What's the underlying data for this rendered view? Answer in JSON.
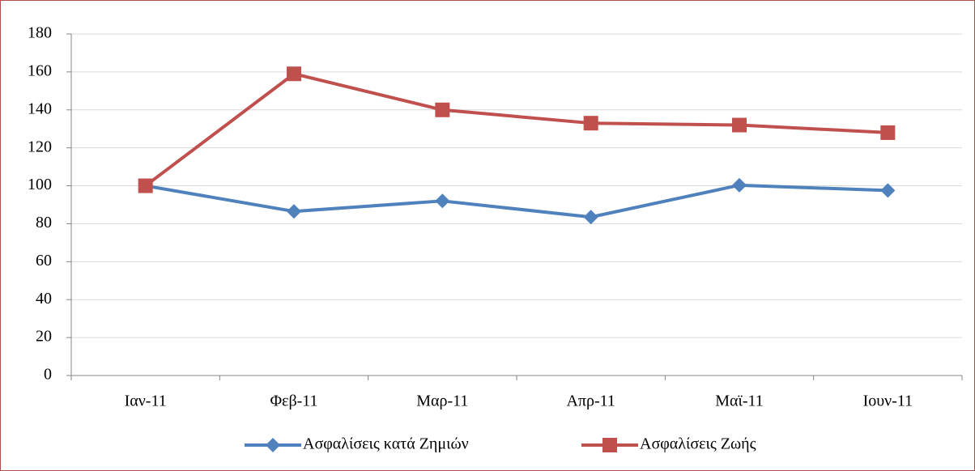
{
  "chart_data": {
    "type": "line",
    "categories": [
      "Ιαν-11",
      "Φεβ-11",
      "Μαρ-11",
      "Απρ-11",
      "Μαϊ-11",
      "Ιουν-11"
    ],
    "series": [
      {
        "name": "Ασφαλίσεις κατά Ζημιών",
        "color": "#4f81bd",
        "marker": "diamond",
        "values": [
          100,
          86.5,
          92,
          83.5,
          100.3,
          97.5
        ]
      },
      {
        "name": "Ασφαλίσεις Ζωής",
        "color": "#c0504d",
        "marker": "square",
        "values": [
          100,
          159,
          140,
          133,
          132,
          128
        ]
      }
    ],
    "ylim": [
      0,
      180
    ],
    "yticks": [
      0,
      20,
      40,
      60,
      80,
      100,
      120,
      140,
      160,
      180
    ],
    "grid": true,
    "legend": "bottom"
  }
}
